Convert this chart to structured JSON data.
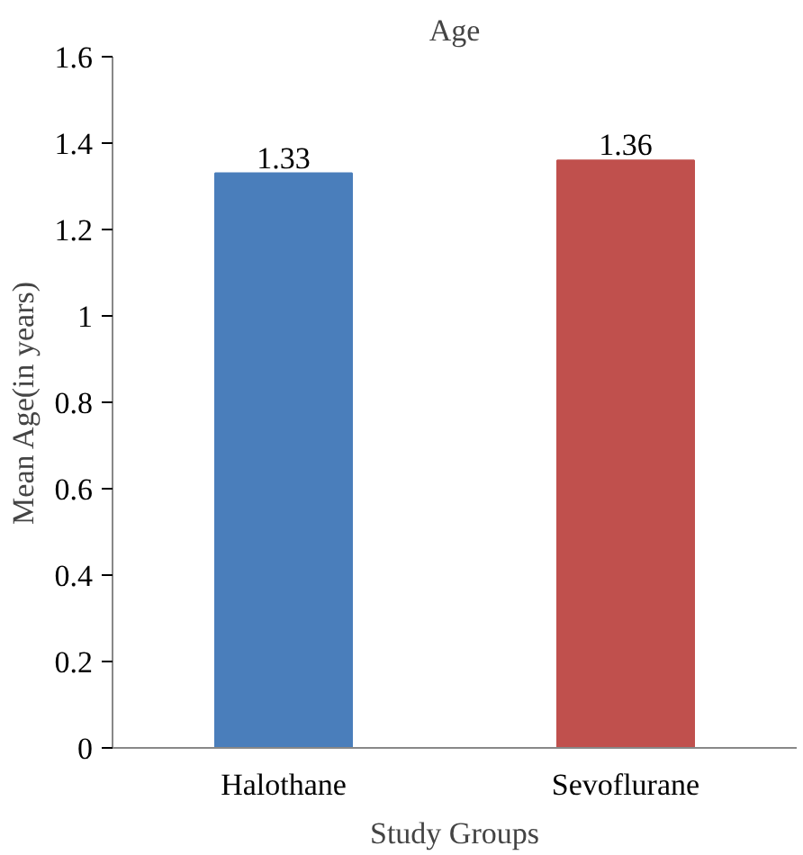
{
  "chart_data": {
    "type": "bar",
    "title": "Age",
    "xlabel": "Study Groups",
    "ylabel": "Mean Age(in years)",
    "categories": [
      "Halothane",
      "Sevoflurane"
    ],
    "values": [
      1.33,
      1.36
    ],
    "colors": [
      "#4a7ebb",
      "#c0504d"
    ],
    "ylim": [
      0,
      1.6
    ],
    "yticks": [
      0,
      0.2,
      0.4,
      0.6,
      0.8,
      1,
      1.2,
      1.4,
      1.6
    ],
    "grid": false,
    "data_labels": true
  }
}
